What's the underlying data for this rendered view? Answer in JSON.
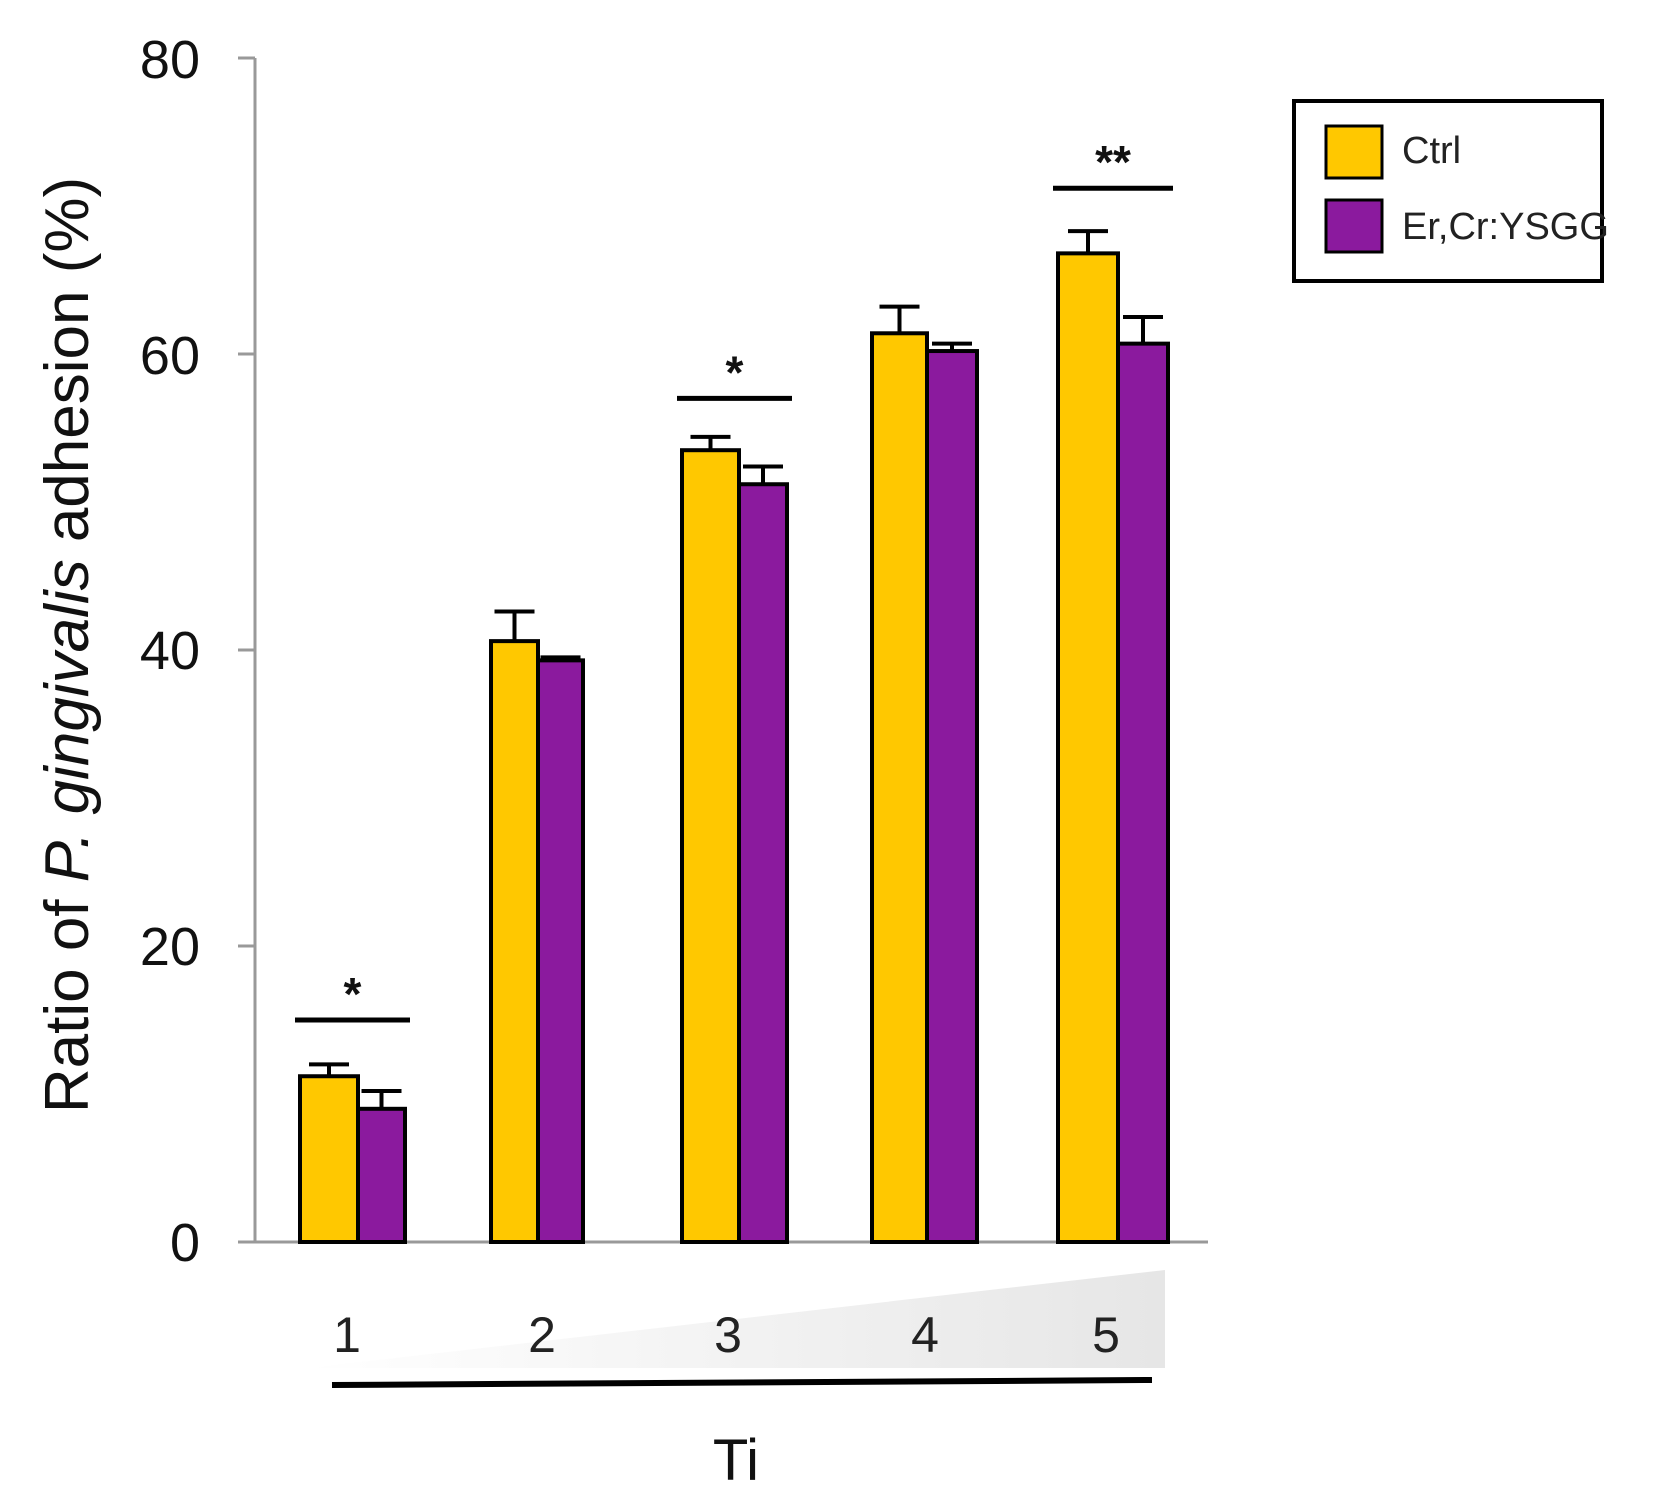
{
  "chart_data": {
    "type": "bar",
    "title": "",
    "xlabel": "Ti",
    "ylabel_parts": [
      "Ratio of ",
      "P. gingivalis",
      " adhesion (%)"
    ],
    "ylim": [
      0,
      80
    ],
    "yticks": [
      0,
      20,
      40,
      60,
      80
    ],
    "ytick_labels": [
      "0",
      "20",
      "40",
      "60",
      "80"
    ],
    "categories": [
      "1",
      "2",
      "3",
      "4",
      "5"
    ],
    "series": [
      {
        "name": "Ctrl",
        "color": "#FFC800",
        "values": [
          11.2,
          40.6,
          53.5,
          61.4,
          66.8
        ],
        "errors": [
          0.8,
          2.0,
          0.9,
          1.8,
          1.5
        ]
      },
      {
        "name": "Er,Cr:YSGG",
        "color": "#8B1A9E",
        "values": [
          9.0,
          39.3,
          51.2,
          60.2,
          60.7
        ],
        "errors": [
          1.2,
          0.2,
          1.2,
          0.5,
          1.8
        ]
      }
    ],
    "significance": [
      {
        "category_index": 0,
        "label": "*",
        "bar_y": 15.0
      },
      {
        "category_index": 2,
        "label": "*",
        "bar_y": 57.0
      },
      {
        "category_index": 4,
        "label": "**",
        "bar_y": 71.2
      }
    ],
    "legend_position": "top-right",
    "gradient_wedge": "increasing left to right under x-axis",
    "grid": false
  }
}
